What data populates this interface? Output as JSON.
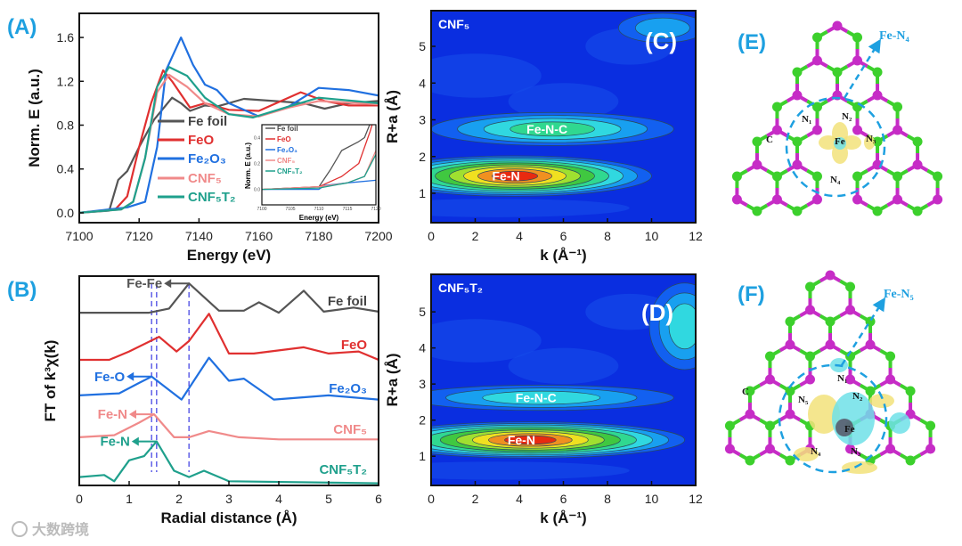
{
  "panels": {
    "A": "(A)",
    "B": "(B)",
    "C": "(C)",
    "D": "(D)",
    "E": "(E)",
    "F": "(F)"
  },
  "colors": {
    "Fe foil": "#555555",
    "FeO": "#e03030",
    "Fe2O3": "#2070e0",
    "CNF5": "#f08a8a",
    "CNF5T2": "#1fa08c",
    "label": "#1ea0e0"
  },
  "chart_data": [
    {
      "id": "A",
      "type": "line",
      "xlabel": "Energy (eV)",
      "ylabel": "Norm. E (a.u.)",
      "xlim": [
        7100,
        7200
      ],
      "ylim": [
        -0.09,
        1.82
      ],
      "xticks": [
        "7100",
        "7120",
        "7140",
        "7160",
        "7180",
        "7200"
      ],
      "xtick_values": [
        7100,
        7120,
        7140,
        7160,
        7180,
        7200
      ],
      "yticks": [
        "0.0",
        "0.4",
        "0.8",
        "1.2",
        "1.6"
      ],
      "ytick_values": [
        0,
        0.4,
        0.8,
        1.2,
        1.6
      ],
      "legend_position": "center",
      "series": [
        {
          "name": "Fe foil",
          "key": "Fe foil",
          "x": [
            7100,
            7110,
            7113,
            7116,
            7120,
            7125,
            7131,
            7134,
            7137,
            7142,
            7146,
            7155,
            7165,
            7175,
            7182,
            7190,
            7200
          ],
          "y": [
            0,
            0.02,
            0.3,
            0.38,
            0.6,
            0.85,
            1.05,
            1.0,
            0.93,
            0.98,
            0.97,
            1.04,
            1.02,
            1.0,
            0.95,
            1.0,
            1.02
          ]
        },
        {
          "name": "FeO",
          "key": "FeO",
          "x": [
            7100,
            7112,
            7116,
            7120,
            7124,
            7128,
            7131,
            7137,
            7142,
            7150,
            7160,
            7174,
            7182,
            7190,
            7200
          ],
          "y": [
            0,
            0.03,
            0.15,
            0.6,
            1.0,
            1.3,
            1.2,
            0.96,
            1.0,
            0.94,
            0.93,
            1.1,
            1.02,
            0.98,
            0.98
          ]
        },
        {
          "name": "Fe₂O₃",
          "key": "Fe2O3",
          "x": [
            7100,
            7116,
            7122,
            7126,
            7129,
            7134,
            7138,
            7142,
            7146,
            7150,
            7160,
            7170,
            7180,
            7190,
            7200
          ],
          "y": [
            0,
            0.05,
            0.1,
            0.6,
            1.3,
            1.6,
            1.35,
            1.17,
            1.12,
            1.0,
            0.88,
            0.97,
            1.14,
            1.12,
            1.07
          ]
        },
        {
          "name": "CNF₅",
          "key": "CNF5",
          "x": [
            7100,
            7114,
            7118,
            7122,
            7126,
            7130,
            7136,
            7142,
            7150,
            7160,
            7170,
            7180,
            7200
          ],
          "y": [
            0,
            0.03,
            0.1,
            0.5,
            1.1,
            1.26,
            1.15,
            1.0,
            0.9,
            0.88,
            0.96,
            1.02,
            0.99
          ]
        },
        {
          "name": "CNF₅T₂",
          "key": "CNF5T2",
          "x": [
            7100,
            7114,
            7118,
            7122,
            7126,
            7130,
            7136,
            7142,
            7150,
            7158,
            7170,
            7180,
            7200
          ],
          "y": [
            0,
            0.03,
            0.1,
            0.5,
            1.15,
            1.33,
            1.25,
            1.05,
            0.9,
            0.87,
            0.97,
            1.05,
            1.0
          ]
        }
      ],
      "inset": {
        "xlabel": "Energy (eV)",
        "ylabel": "Norm. E (a.u.)",
        "xlim": [
          7100,
          7120
        ],
        "ylim": [
          -0.12,
          0.5
        ],
        "xticks": [
          "7100",
          "7105",
          "7110",
          "7115",
          "7120"
        ],
        "xtick_values": [
          7100,
          7105,
          7110,
          7115,
          7120
        ],
        "yticks": [
          "0.0",
          "0.2",
          "0.4"
        ],
        "ytick_values": [
          0,
          0.2,
          0.4
        ],
        "series": [
          {
            "name": "Fe foil",
            "key": "Fe foil",
            "x": [
              7100,
              7110,
              7112,
              7114,
              7117,
              7118,
              7120
            ],
            "y": [
              0,
              0.02,
              0.15,
              0.3,
              0.37,
              0.4,
              0.62
            ]
          },
          {
            "name": "FeO",
            "key": "FeO",
            "x": [
              7100,
              7110,
              7114,
              7117,
              7119,
              7120
            ],
            "y": [
              0,
              0.02,
              0.1,
              0.2,
              0.45,
              0.6
            ]
          },
          {
            "name": "Fe₂O₃",
            "key": "Fe2O3",
            "x": [
              7100,
              7110,
              7111,
              7115,
              7120
            ],
            "y": [
              0,
              0,
              0.03,
              0.05,
              0.07
            ]
          },
          {
            "name": "CNF₅",
            "key": "CNF5",
            "x": [
              7100,
              7110,
              7115,
              7118,
              7120
            ],
            "y": [
              0,
              0.02,
              0.05,
              0.1,
              0.3
            ]
          },
          {
            "name": "CNF₅T₂",
            "key": "CNF5T2",
            "x": [
              7100,
              7110,
              7115,
              7118,
              7120
            ],
            "y": [
              0,
              0.01,
              0.05,
              0.1,
              0.27
            ]
          }
        ]
      }
    },
    {
      "id": "B",
      "type": "line",
      "xlabel": "Radial distance (Å)",
      "ylabel": "FT of k³χ(k)",
      "xlim": [
        0,
        6
      ],
      "ylim": [
        0,
        10
      ],
      "xticks": [
        "0",
        "1",
        "2",
        "3",
        "4",
        "5",
        "6"
      ],
      "xtick_values": [
        0,
        1,
        2,
        3,
        4,
        5,
        6
      ],
      "dashed_lines_x": [
        1.45,
        1.55,
        2.2
      ],
      "series": [
        {
          "name": "Fe foil",
          "key": "Fe foil",
          "x": [
            0,
            1.4,
            1.8,
            2.2,
            2.8,
            3.3,
            3.6,
            4.0,
            4.5,
            4.9,
            5.5,
            6
          ],
          "y": [
            8.25,
            8.25,
            8.45,
            9.65,
            8.35,
            8.35,
            8.75,
            8.25,
            9.3,
            8.3,
            8.5,
            8.3
          ]
        },
        {
          "name": "FeO",
          "key": "FeO",
          "x": [
            0,
            0.6,
            1.0,
            1.6,
            1.95,
            2.2,
            2.6,
            3.0,
            3.5,
            4.5,
            5.0,
            5.6,
            6
          ],
          "y": [
            6.0,
            6.0,
            6.4,
            7.1,
            6.4,
            6.9,
            8.2,
            6.3,
            6.3,
            6.6,
            6.3,
            6.4,
            6.0
          ]
        },
        {
          "name": "Fe₂O₃",
          "key": "Fe2O3",
          "x": [
            0,
            0.8,
            1.2,
            1.45,
            2.05,
            2.6,
            3.0,
            3.3,
            3.9,
            5,
            6
          ],
          "y": [
            4.3,
            4.4,
            4.9,
            5.2,
            4.1,
            6.1,
            5.0,
            5.1,
            4.1,
            4.3,
            4.1
          ]
        },
        {
          "name": "CNF₅",
          "key": "CNF5",
          "x": [
            0,
            0.7,
            1.2,
            1.5,
            1.9,
            2.2,
            2.6,
            3.2,
            4,
            6
          ],
          "y": [
            2.3,
            2.4,
            3.0,
            3.4,
            2.3,
            2.3,
            2.6,
            2.3,
            2.2,
            2.2
          ]
        },
        {
          "name": "CNF₅T₂",
          "key": "CNF5T2",
          "x": [
            0,
            0.5,
            0.7,
            1.0,
            1.3,
            1.55,
            1.9,
            2.2,
            2.5,
            3.0,
            6
          ],
          "y": [
            0.4,
            0.5,
            0.2,
            1.2,
            1.4,
            2.1,
            0.7,
            0.4,
            0.7,
            0.2,
            0.1
          ]
        }
      ],
      "annotations": [
        {
          "text": "Fe-Fe",
          "key": "Fe foil",
          "x": 2.2,
          "y": 9.65
        },
        {
          "text": "Fe-O",
          "key": "Fe2O3",
          "x": 1.45,
          "y": 5.2
        },
        {
          "text": "Fe-N",
          "key": "CNF5",
          "x": 1.5,
          "y": 3.4
        },
        {
          "text": "Fe-N",
          "key": "CNF5T2",
          "x": 1.55,
          "y": 2.1
        }
      ]
    },
    {
      "id": "C",
      "type": "heatmap",
      "sample": "CNF₅",
      "xlabel": "k (Å⁻¹)",
      "ylabel": "R+a (Å)",
      "xlim": [
        0,
        12
      ],
      "ylim": [
        0.2,
        5.97
      ],
      "xticks": [
        "0",
        "2",
        "4",
        "6",
        "8",
        "10",
        "12"
      ],
      "xtick_values": [
        0,
        2,
        4,
        6,
        8,
        10,
        12
      ],
      "yticks": [
        "1",
        "2",
        "3",
        "4",
        "5"
      ],
      "ytick_values": [
        1,
        2,
        3,
        4,
        5
      ],
      "peaks": [
        {
          "label": "Fe-N",
          "k": 3.8,
          "R": 1.47,
          "spread_k": 6.2,
          "spread_R": 0.55,
          "intensity": 1.0
        },
        {
          "label": "Fe-N-C",
          "k": 5.5,
          "R": 2.75,
          "spread_k": 5.5,
          "spread_R": 0.45,
          "intensity": 0.45
        },
        {
          "label": "",
          "k": 10.5,
          "R": 5.5,
          "spread_k": 2.0,
          "spread_R": 0.4,
          "intensity": 0.2
        }
      ]
    },
    {
      "id": "D",
      "type": "heatmap",
      "sample": "CNF₅T₂",
      "xlabel": "k (Å⁻¹)",
      "ylabel": "R+a (Å)",
      "xlim": [
        0,
        12
      ],
      "ylim": [
        0.19,
        6.04
      ],
      "xticks": [
        "0",
        "2",
        "4",
        "6",
        "8",
        "10",
        "12"
      ],
      "xtick_values": [
        0,
        2,
        4,
        6,
        8,
        10,
        12
      ],
      "yticks": [
        "1",
        "2",
        "3",
        "4",
        "5"
      ],
      "ytick_values": [
        1,
        2,
        3,
        4,
        5
      ],
      "peaks": [
        {
          "label": "Fe-N",
          "k": 4.5,
          "R": 1.45,
          "spread_k": 7.0,
          "spread_R": 0.5,
          "intensity": 1.0
        },
        {
          "label": "Fe-N-C",
          "k": 5.0,
          "R": 2.62,
          "spread_k": 6.0,
          "spread_R": 0.35,
          "intensity": 0.35
        },
        {
          "label": "",
          "k": 11.5,
          "R": 4.6,
          "spread_k": 1.6,
          "spread_R": 1.2,
          "intensity": 0.3
        }
      ]
    }
  ],
  "structures": {
    "E": {
      "title": "Fe-N₄",
      "atoms": {
        "N1": "N₁",
        "N2": "N₂",
        "N3": "N₃",
        "N4": "N₄",
        "Fe": "Fe",
        "C": "C"
      }
    },
    "F": {
      "title": "Fe-N₅",
      "atoms": {
        "N1": "N₁",
        "N2": "N₂",
        "N3": "N₃",
        "N4": "N₄",
        "N5": "N₅",
        "Fe": "Fe",
        "C": "C"
      }
    }
  },
  "watermark": "大数跨境"
}
